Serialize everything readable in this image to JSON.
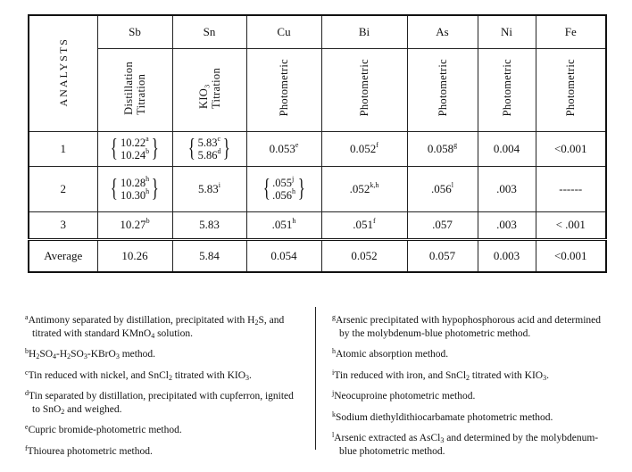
{
  "table": {
    "row_header_label": "ANALYSTS",
    "columns": [
      {
        "element": "Sb",
        "method_lines": [
          "Distillation",
          "Titration"
        ]
      },
      {
        "element": "Sn",
        "method_lines": [
          "KIO₃",
          "Titration"
        ]
      },
      {
        "element": "Cu",
        "method_lines": [
          "Photometric"
        ]
      },
      {
        "element": "Bi",
        "method_lines": [
          "Photometric"
        ]
      },
      {
        "element": "As",
        "method_lines": [
          "Photometric"
        ]
      },
      {
        "element": "Ni",
        "method_lines": [
          "Photometric"
        ]
      },
      {
        "element": "Fe",
        "method_lines": [
          "Photometric"
        ]
      }
    ],
    "rows": [
      {
        "analyst": "1",
        "sb": [
          {
            "v": "10.22",
            "n": "a"
          },
          {
            "v": "10.24",
            "n": "b"
          }
        ],
        "sn": [
          {
            "v": "5.83",
            "n": "c"
          },
          {
            "v": "5.86",
            "n": "d"
          }
        ],
        "cu": {
          "v": "0.053",
          "n": "e"
        },
        "bi": {
          "v": "0.052",
          "n": "f"
        },
        "as": {
          "v": "0.058",
          "n": "g"
        },
        "ni": "0.004",
        "fe": "<0.001"
      },
      {
        "analyst": "2",
        "sb": [
          {
            "v": "10.28",
            "n": "h"
          },
          {
            "v": "10.30",
            "n": "h"
          }
        ],
        "sn": {
          "v": "5.83",
          "n": "i"
        },
        "cu": [
          {
            "v": ".055",
            "n": "j"
          },
          {
            "v": ".056",
            "n": "h"
          }
        ],
        "bi": {
          "v": ".052",
          "n": "k,h"
        },
        "as": {
          "v": ".056",
          "n": "l"
        },
        "ni": ".003",
        "fe": "------"
      },
      {
        "analyst": "3",
        "sb": {
          "v": "10.27",
          "n": "b"
        },
        "sn": {
          "v": "5.83",
          "n": ""
        },
        "cu": {
          "v": ".051",
          "n": "h"
        },
        "bi": {
          "v": ".051",
          "n": "f"
        },
        "as": {
          "v": ".057",
          "n": ""
        },
        "ni": ".003",
        "fe": "< .001"
      }
    ],
    "average": {
      "label": "Average",
      "values": [
        "10.26",
        "5.84",
        "0.054",
        "0.052",
        "0.057",
        "0.003",
        "<0.001"
      ]
    }
  },
  "footnotes": {
    "left": [
      {
        "mark": "a",
        "text": "Antimony separated by distillation, precipitated with H₂S, and titrated with standard KMnO₄ solution."
      },
      {
        "mark": "b",
        "text": "H₂SO₄-H₂SO₃-KBrO₃ method."
      },
      {
        "mark": "c",
        "text": "Tin reduced with nickel, and SnCl₂ titrated with KIO₃."
      },
      {
        "mark": "d",
        "text": "Tin separated by distillation, precipitated with cupferron, ignited to SnO₂ and weighed."
      },
      {
        "mark": "e",
        "text": "Cupric bromide-photometric method."
      },
      {
        "mark": "f",
        "text": "Thiourea photometric method."
      }
    ],
    "right": [
      {
        "mark": "g",
        "text": "Arsenic precipitated with hypophosphorous acid and determined by the molybdenum-blue photometric method."
      },
      {
        "mark": "h",
        "text": "Atomic absorption method."
      },
      {
        "mark": "i",
        "text": "Tin reduced with iron, and SnCl₂ titrated with KIO₃."
      },
      {
        "mark": "j",
        "text": "Neocuproine photometric method."
      },
      {
        "mark": "k",
        "text": "Sodium diethyldithiocarbamate photometric method."
      },
      {
        "mark": "l",
        "text": "Arsenic extracted as AsCl₃ and determined by the molybdenum-blue photometric method."
      }
    ]
  }
}
